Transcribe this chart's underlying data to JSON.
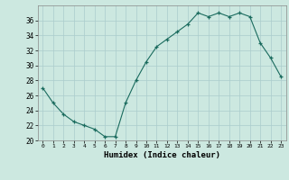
{
  "x": [
    0,
    1,
    2,
    3,
    4,
    5,
    6,
    7,
    8,
    9,
    10,
    11,
    12,
    13,
    14,
    15,
    16,
    17,
    18,
    19,
    20,
    21,
    22,
    23
  ],
  "y": [
    27,
    25,
    23.5,
    22.5,
    22,
    21.5,
    20.5,
    20.5,
    25,
    28,
    30.5,
    32.5,
    33.5,
    34.5,
    35.5,
    37,
    36.5,
    37,
    36.5,
    37,
    36.5,
    33,
    31,
    28.5
  ],
  "line_color": "#1a6b5e",
  "marker": "+",
  "marker_color": "#1a6b5e",
  "bg_color": "#cce8e0",
  "grid_color": "#aacccc",
  "xlabel": "Humidex (Indice chaleur)",
  "ylim": [
    20,
    38
  ],
  "yticks": [
    20,
    22,
    24,
    26,
    28,
    30,
    32,
    34,
    36
  ],
  "xlim": [
    -0.5,
    23.5
  ],
  "xticks": [
    0,
    1,
    2,
    3,
    4,
    5,
    6,
    7,
    8,
    9,
    10,
    11,
    12,
    13,
    14,
    15,
    16,
    17,
    18,
    19,
    20,
    21,
    22,
    23
  ]
}
